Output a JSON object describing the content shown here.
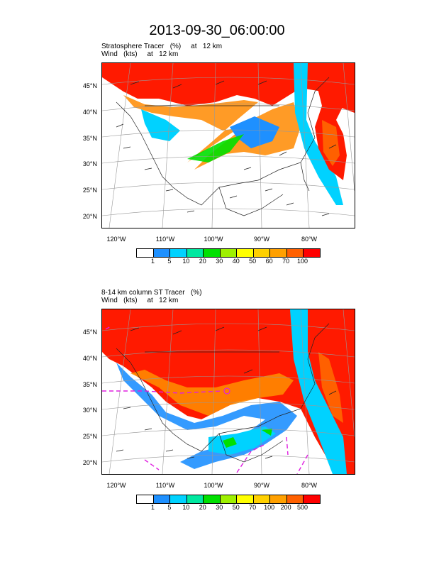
{
  "title": "2013-09-30_06:00:00",
  "panels": [
    {
      "line1": "Stratosphere Tracer   (%)     at   12 km",
      "line2": "Wind   (kts)     at   12 km",
      "lat_labels": [
        "45°N",
        "40°N",
        "35°N",
        "30°N",
        "25°N",
        "20°N"
      ],
      "lon_labels": [
        "120°W",
        "110°W",
        "100°W",
        "90°W",
        "80°W"
      ],
      "colorbar_labels": [
        "1",
        "5",
        "10",
        "20",
        "30",
        "40",
        "50",
        "60",
        "70",
        "100"
      ],
      "colorbar_colors": [
        "#ffffff",
        "#1e90ff",
        "#00d2ff",
        "#00e8a0",
        "#00e000",
        "#9ef000",
        "#ffff00",
        "#ffd000",
        "#ffa000",
        "#ff6000",
        "#ff0000"
      ]
    },
    {
      "line1": "8-14 km column ST Tracer   (%)",
      "line2": "Wind   (kts)     at   12 km",
      "lat_labels": [
        "45°N",
        "40°N",
        "35°N",
        "30°N",
        "25°N",
        "20°N"
      ],
      "lon_labels": [
        "120°W",
        "110°W",
        "100°W",
        "90°W",
        "80°W"
      ],
      "colorbar_labels": [
        "1",
        "5",
        "10",
        "20",
        "30",
        "50",
        "70",
        "100",
        "200",
        "500"
      ],
      "colorbar_colors": [
        "#ffffff",
        "#1e90ff",
        "#00d2ff",
        "#00e8a0",
        "#00e000",
        "#9ef000",
        "#ffff00",
        "#ffd000",
        "#ffa000",
        "#ff6000",
        "#ff0000"
      ]
    }
  ]
}
